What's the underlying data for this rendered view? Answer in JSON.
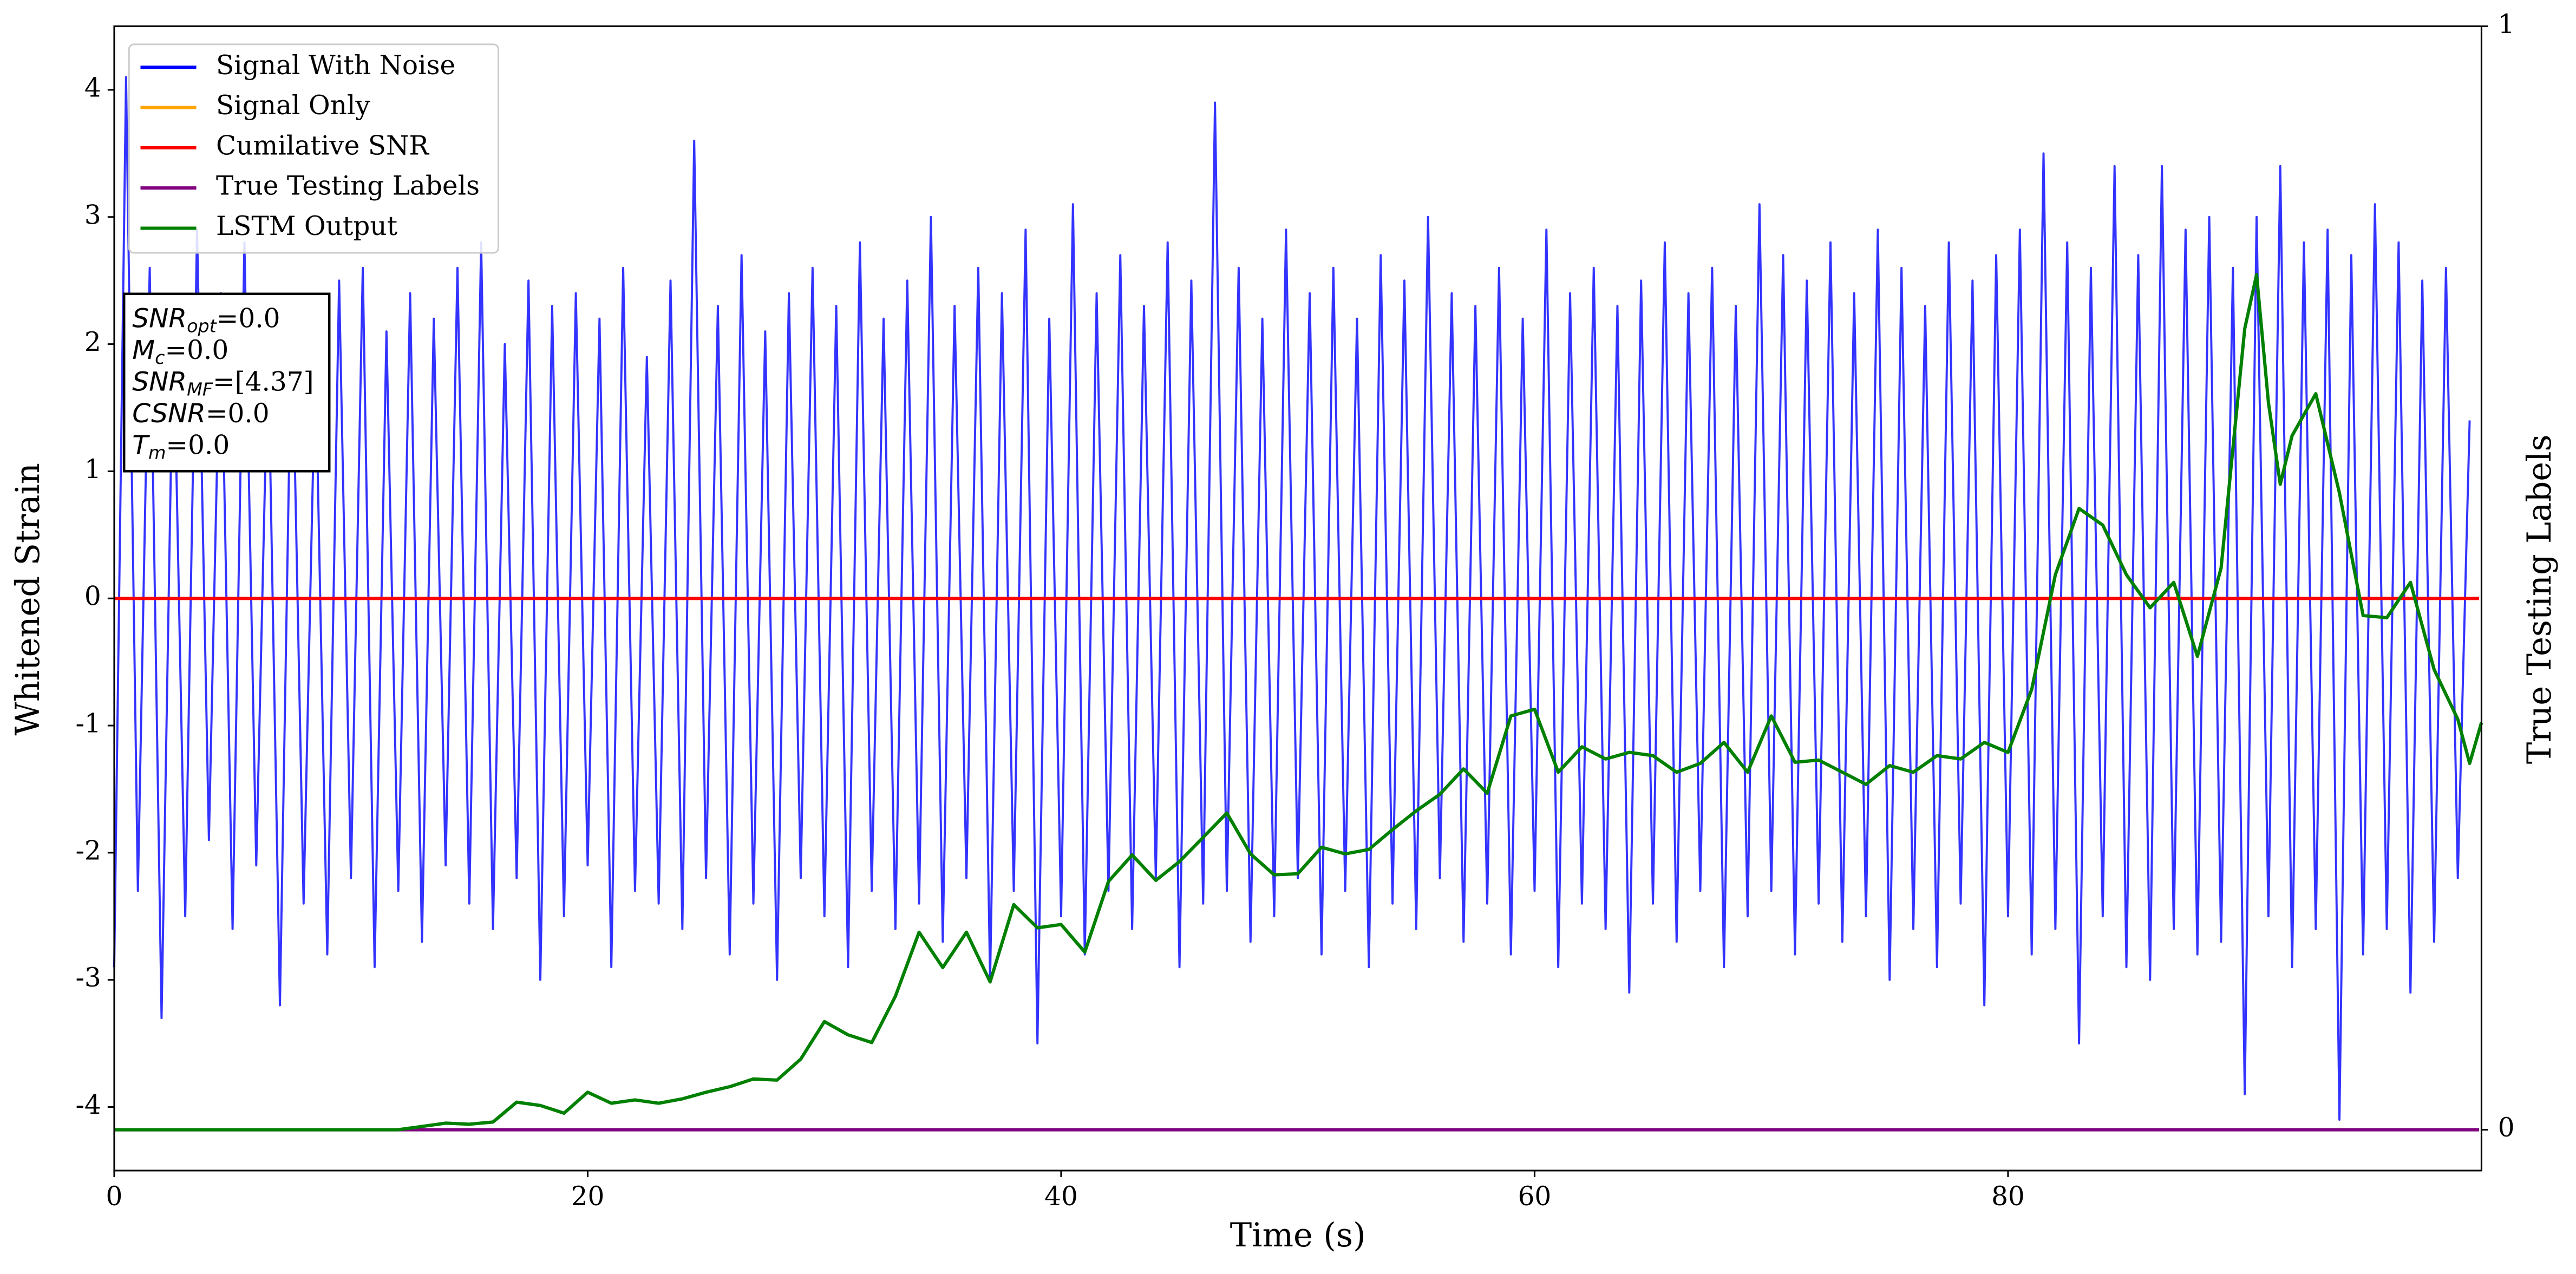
{
  "chart_data": {
    "type": "line",
    "xlabel": "Time (s)",
    "ylabel": "Whitened Strain",
    "y2label": "True Testing Labels",
    "xlim": [
      0,
      100
    ],
    "ylim": [
      -4.5,
      4.5
    ],
    "y2lim": [
      -0.037,
      1
    ],
    "xticks": [
      0,
      20,
      40,
      60,
      80
    ],
    "yticks": [
      -4,
      -3,
      -2,
      -1,
      0,
      1,
      2,
      3,
      4
    ],
    "y2ticks": [
      0,
      1
    ],
    "legend": "upper left",
    "series": [
      {
        "name": "Signal With Noise",
        "color": "#0000ff",
        "axis": "y",
        "x": [
          0,
          0.5,
          1,
          1.5,
          2,
          2.5,
          3,
          3.5,
          4,
          4.5,
          5,
          5.5,
          6,
          6.5,
          7,
          7.5,
          8,
          8.5,
          9,
          9.5,
          10,
          10.5,
          11,
          11.5,
          12,
          12.5,
          13,
          13.5,
          14,
          14.5,
          15,
          15.5,
          16,
          16.5,
          17,
          17.5,
          18,
          18.5,
          19,
          19.5,
          20,
          20.5,
          21,
          21.5,
          22,
          22.5,
          23,
          23.5,
          24,
          24.5,
          25,
          25.5,
          26,
          26.5,
          27,
          27.5,
          28,
          28.5,
          29,
          29.5,
          30,
          30.5,
          31,
          31.5,
          32,
          32.5,
          33,
          33.5,
          34,
          34.5,
          35,
          35.5,
          36,
          36.5,
          37,
          37.5,
          38,
          38.5,
          39,
          39.5,
          40,
          40.5,
          41,
          41.5,
          42,
          42.5,
          43,
          43.5,
          44,
          44.5,
          45,
          45.5,
          46,
          46.5,
          47,
          47.5,
          48,
          48.5,
          49,
          49.5,
          50,
          50.5,
          51,
          51.5,
          52,
          52.5,
          53,
          53.5,
          54,
          54.5,
          55,
          55.5,
          56,
          56.5,
          57,
          57.5,
          58,
          58.5,
          59,
          59.5,
          60,
          60.5,
          61,
          61.5,
          62,
          62.5,
          63,
          63.5,
          64,
          64.5,
          65,
          65.5,
          66,
          66.5,
          67,
          67.5,
          68,
          68.5,
          69,
          69.5,
          70,
          70.5,
          71,
          71.5,
          72,
          72.5,
          73,
          73.5,
          74,
          74.5,
          75,
          75.5,
          76,
          76.5,
          77,
          77.5,
          78,
          78.5,
          79,
          79.5,
          80,
          80.5,
          81,
          81.5,
          82,
          82.5,
          83,
          83.5,
          84,
          84.5,
          85,
          85.5,
          86,
          86.5,
          87,
          87.5,
          88,
          88.5,
          89,
          89.5,
          90,
          90.5,
          91,
          91.5,
          92,
          92.5,
          93,
          93.5,
          94,
          94.5,
          95,
          95.5,
          96,
          96.5,
          97,
          97.5,
          98,
          98.5,
          99,
          99.5
        ],
        "values": [
          -2.9,
          4.1,
          -2.3,
          2.6,
          -3.3,
          2.2,
          -2.5,
          2.9,
          -1.9,
          2.4,
          -2.6,
          2.8,
          -2.1,
          2.0,
          -3.2,
          2.3,
          -2.4,
          1.9,
          -2.8,
          2.5,
          -2.2,
          2.6,
          -2.9,
          2.1,
          -2.3,
          2.4,
          -2.7,
          2.2,
          -2.1,
          2.6,
          -2.4,
          2.8,
          -2.6,
          2.0,
          -2.2,
          2.5,
          -3.0,
          2.3,
          -2.5,
          2.4,
          -2.1,
          2.2,
          -2.9,
          2.6,
          -2.3,
          1.9,
          -2.4,
          2.5,
          -2.6,
          3.6,
          -2.2,
          2.3,
          -2.8,
          2.7,
          -2.4,
          2.1,
          -3.0,
          2.4,
          -2.2,
          2.6,
          -2.5,
          2.3,
          -2.9,
          2.8,
          -2.3,
          2.2,
          -2.6,
          2.5,
          -2.4,
          3.0,
          -2.7,
          2.3,
          -2.2,
          2.6,
          -3.0,
          2.4,
          -2.3,
          2.9,
          -3.5,
          2.2,
          -2.5,
          3.1,
          -2.8,
          2.4,
          -2.3,
          2.7,
          -2.6,
          2.3,
          -2.2,
          2.8,
          -2.9,
          2.5,
          -2.4,
          3.9,
          -2.3,
          2.6,
          -2.7,
          2.2,
          -2.5,
          2.9,
          -2.2,
          2.4,
          -2.8,
          2.6,
          -2.3,
          2.2,
          -2.9,
          2.7,
          -2.4,
          2.5,
          -2.6,
          3.0,
          -2.2,
          2.4,
          -2.7,
          2.3,
          -2.4,
          2.6,
          -2.8,
          2.2,
          -2.3,
          2.9,
          -2.9,
          2.4,
          -2.4,
          2.6,
          -2.6,
          2.3,
          -3.1,
          2.5,
          -2.4,
          2.8,
          -2.7,
          2.4,
          -2.3,
          2.6,
          -2.9,
          2.3,
          -2.5,
          3.1,
          -2.3,
          2.7,
          -2.8,
          2.5,
          -2.4,
          2.8,
          -2.7,
          2.4,
          -2.5,
          2.9,
          -3.0,
          2.6,
          -2.6,
          2.3,
          -2.9,
          2.8,
          -2.4,
          2.5,
          -3.2,
          2.7,
          -2.5,
          2.9,
          -2.8,
          3.5,
          -2.6,
          2.8,
          -3.5,
          2.6,
          -2.5,
          3.4,
          -2.9,
          2.7,
          -3.0,
          3.4,
          -2.6,
          2.9,
          -2.8,
          3.0,
          -2.7,
          2.6,
          -3.9,
          3.0,
          -2.5,
          3.4,
          -2.9,
          2.8,
          -2.6,
          2.9,
          -4.1,
          2.7,
          -2.8,
          3.1,
          -2.6,
          2.8,
          -3.1,
          2.5,
          -2.7,
          2.6,
          -2.2,
          1.4
        ]
      },
      {
        "name": "Signal Only",
        "color": "#ffa500",
        "axis": "y",
        "x": [
          0,
          99.9
        ],
        "values": [
          0,
          0
        ]
      },
      {
        "name": "Cumilative SNR",
        "color": "#ff0000",
        "axis": "y",
        "x": [
          0,
          99.9
        ],
        "values": [
          0,
          0
        ]
      },
      {
        "name": "True Testing Labels",
        "color": "#800080",
        "axis": "y2",
        "x": [
          0,
          99.9
        ],
        "values": [
          0,
          0
        ]
      },
      {
        "name": "LSTM Output",
        "color": "#008000",
        "axis": "y2",
        "x": [
          0,
          11,
          12,
          14,
          15,
          16,
          17,
          18,
          19,
          20,
          21,
          22,
          23,
          24,
          25,
          26,
          27,
          28,
          29,
          30,
          31,
          32,
          33,
          34,
          35,
          36,
          37,
          38,
          39,
          40,
          41,
          42,
          43,
          44,
          45,
          46,
          47,
          48,
          49,
          50,
          51,
          52,
          53,
          54,
          55,
          56,
          57,
          58,
          59,
          60,
          61,
          62,
          63,
          64,
          65,
          66,
          67,
          68,
          69,
          70,
          71,
          72,
          73,
          74,
          75,
          76,
          77,
          78,
          79,
          80,
          81,
          82,
          83,
          84,
          85,
          86,
          87,
          88,
          89,
          90,
          90.5,
          91,
          91.5,
          92,
          93,
          94,
          95,
          96,
          97,
          98,
          99,
          99.5,
          100
        ],
        "values": [
          0,
          0,
          0,
          0.006,
          0.005,
          0.007,
          0.025,
          0.022,
          0.015,
          0.034,
          0.024,
          0.027,
          0.024,
          0.028,
          0.034,
          0.039,
          0.046,
          0.045,
          0.064,
          0.098,
          0.086,
          0.079,
          0.121,
          0.179,
          0.147,
          0.179,
          0.134,
          0.204,
          0.183,
          0.186,
          0.161,
          0.225,
          0.249,
          0.226,
          0.243,
          0.265,
          0.287,
          0.25,
          0.231,
          0.232,
          0.256,
          0.25,
          0.254,
          0.272,
          0.289,
          0.304,
          0.327,
          0.305,
          0.375,
          0.381,
          0.324,
          0.347,
          0.336,
          0.342,
          0.339,
          0.324,
          0.332,
          0.351,
          0.324,
          0.375,
          0.333,
          0.335,
          0.324,
          0.313,
          0.33,
          0.324,
          0.339,
          0.336,
          0.351,
          0.342,
          0.399,
          0.503,
          0.563,
          0.548,
          0.503,
          0.473,
          0.496,
          0.429,
          0.509,
          0.726,
          0.775,
          0.659,
          0.585,
          0.629,
          0.667,
          0.577,
          0.466,
          0.464,
          0.496,
          0.417,
          0.372,
          0.332,
          0.369
        ]
      }
    ],
    "annotations": [
      {
        "base": "SNR",
        "sub": "opt",
        "text": "=0.0"
      },
      {
        "base": "M",
        "sub": "c",
        "text": "=0.0"
      },
      {
        "base": "SNR",
        "sub": "MF",
        "text": "=[4.37]"
      },
      {
        "base": "CSNR",
        "text": "=0.0"
      },
      {
        "base": "T",
        "sub": "m",
        "text": "=0.0"
      }
    ]
  }
}
